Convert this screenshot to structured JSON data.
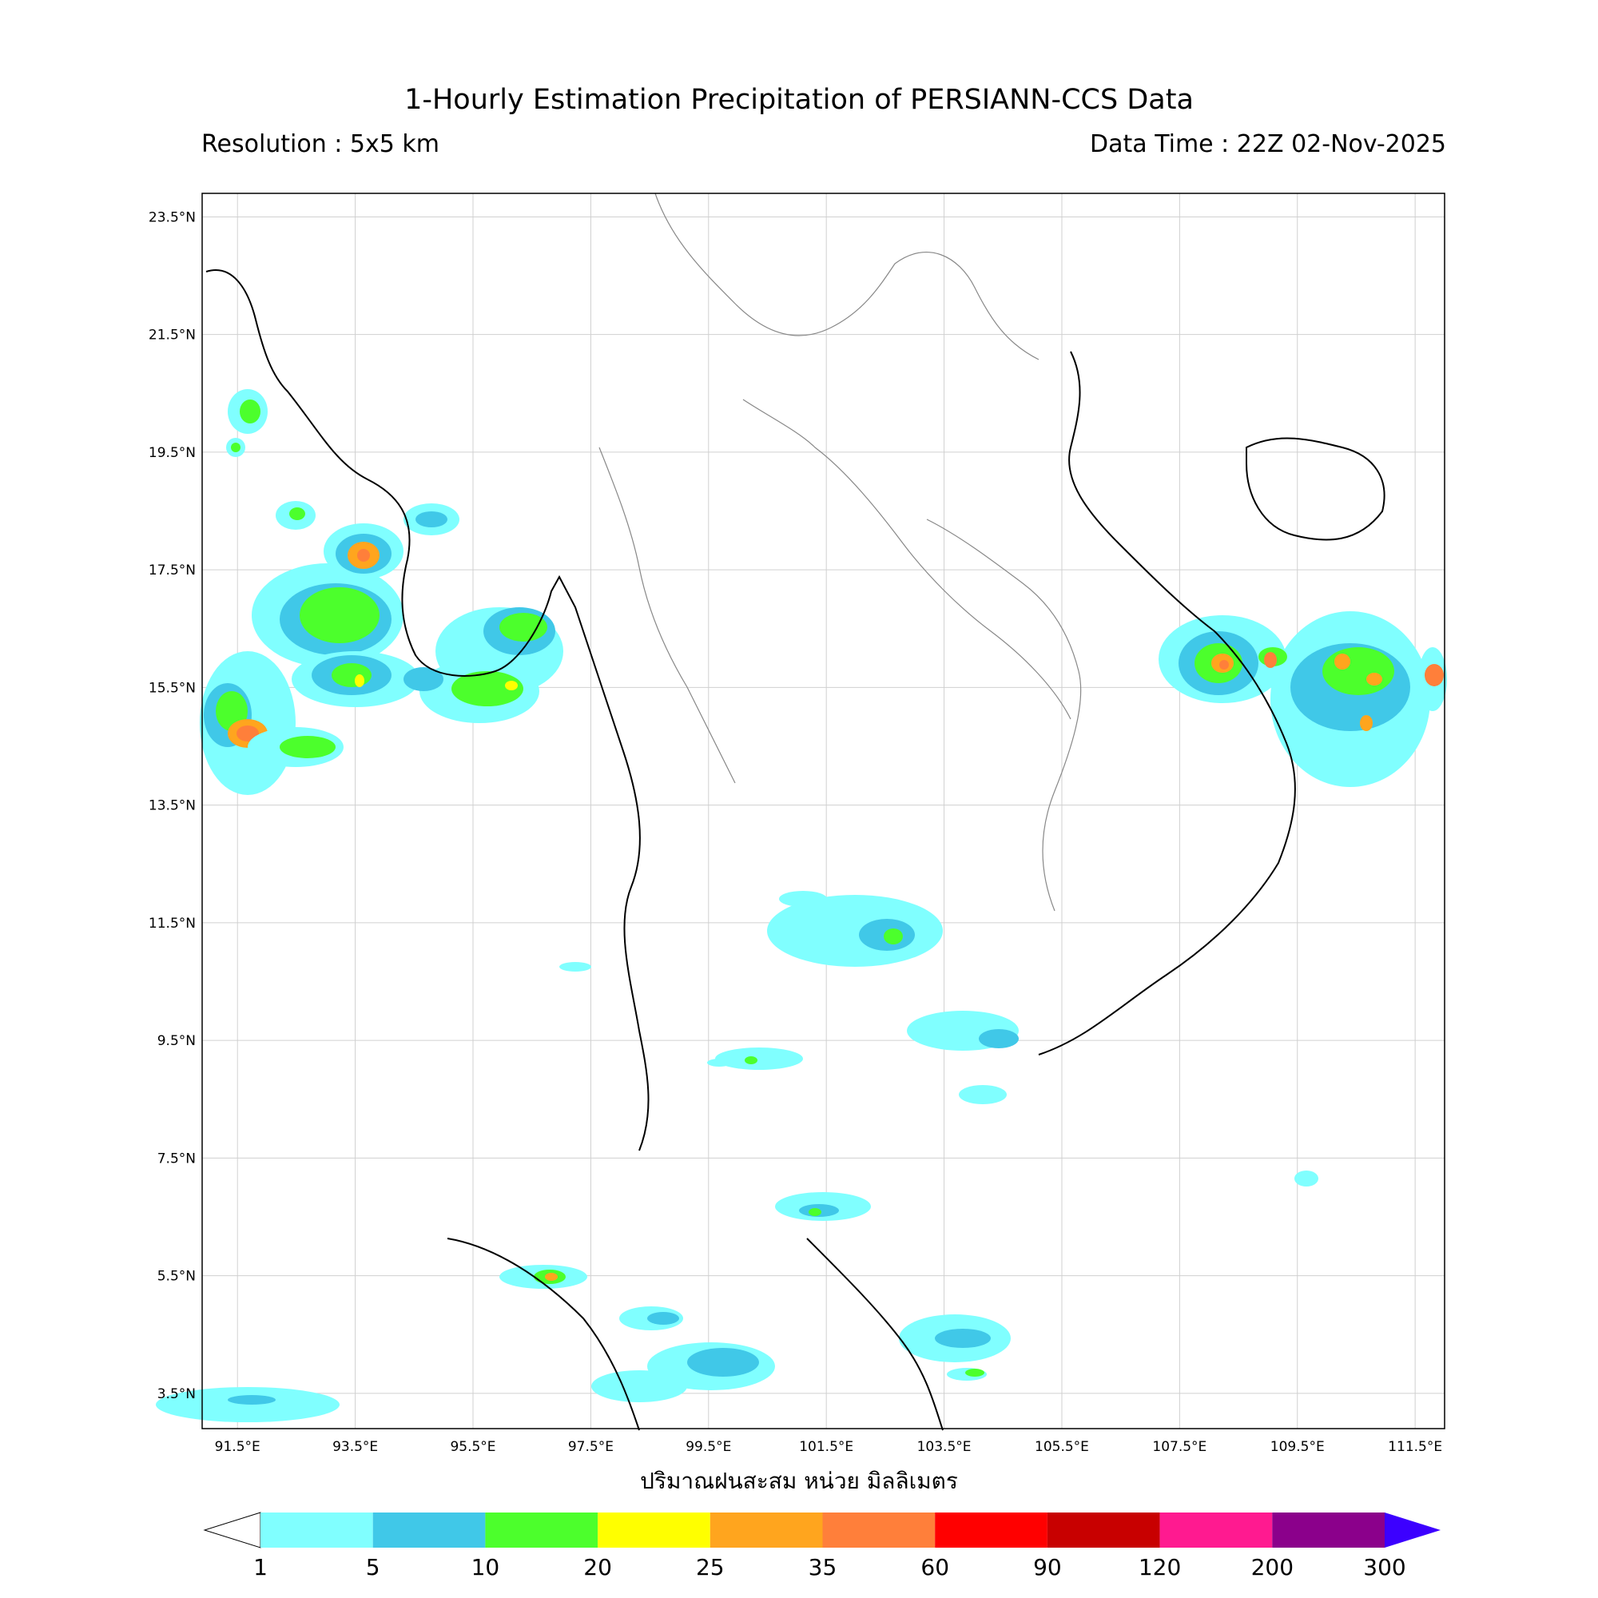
{
  "header": {
    "title": "1-Hourly Estimation Precipitation of PERSIANN-CCS Data",
    "resolution": "Resolution : 5x5 km",
    "data_time": "Data Time : 22Z 02-Nov-2025"
  },
  "map": {
    "lon_range": [
      90.9,
      112.0
    ],
    "lat_range": [
      2.9,
      23.9
    ],
    "lon_ticks": [
      "91.5°E",
      "93.5°E",
      "95.5°E",
      "97.5°E",
      "99.5°E",
      "101.5°E",
      "103.5°E",
      "105.5°E",
      "107.5°E",
      "109.5°E",
      "111.5°E"
    ],
    "lat_ticks": [
      "23.5°N",
      "21.5°N",
      "19.5°N",
      "17.5°N",
      "15.5°N",
      "13.5°N",
      "11.5°N",
      "9.5°N",
      "7.5°N",
      "5.5°N",
      "3.5°N"
    ],
    "grid": true,
    "xlabel": "ปริมาณฝนสะสม หน่วย มิลลิเมตร"
  },
  "colorbar": {
    "ticks": [
      "1",
      "5",
      "10",
      "20",
      "25",
      "35",
      "60",
      "90",
      "120",
      "200",
      "300"
    ],
    "colors": [
      "#80ffff",
      "#40c8e8",
      "#4cff2c",
      "#ffff00",
      "#ffa51e",
      "#ff7f3a",
      "#ff0000",
      "#c80000",
      "#ff1a90",
      "#8b008b"
    ],
    "over_color": "#3c00ff",
    "under_color": "#ffffff"
  },
  "colors": {
    "cyan": "#80ffff",
    "blue": "#40c8e8",
    "green": "#4cff2c",
    "yellow": "#ffff00",
    "orange": "#ffa51e",
    "darkorange": "#ff7f3a"
  }
}
